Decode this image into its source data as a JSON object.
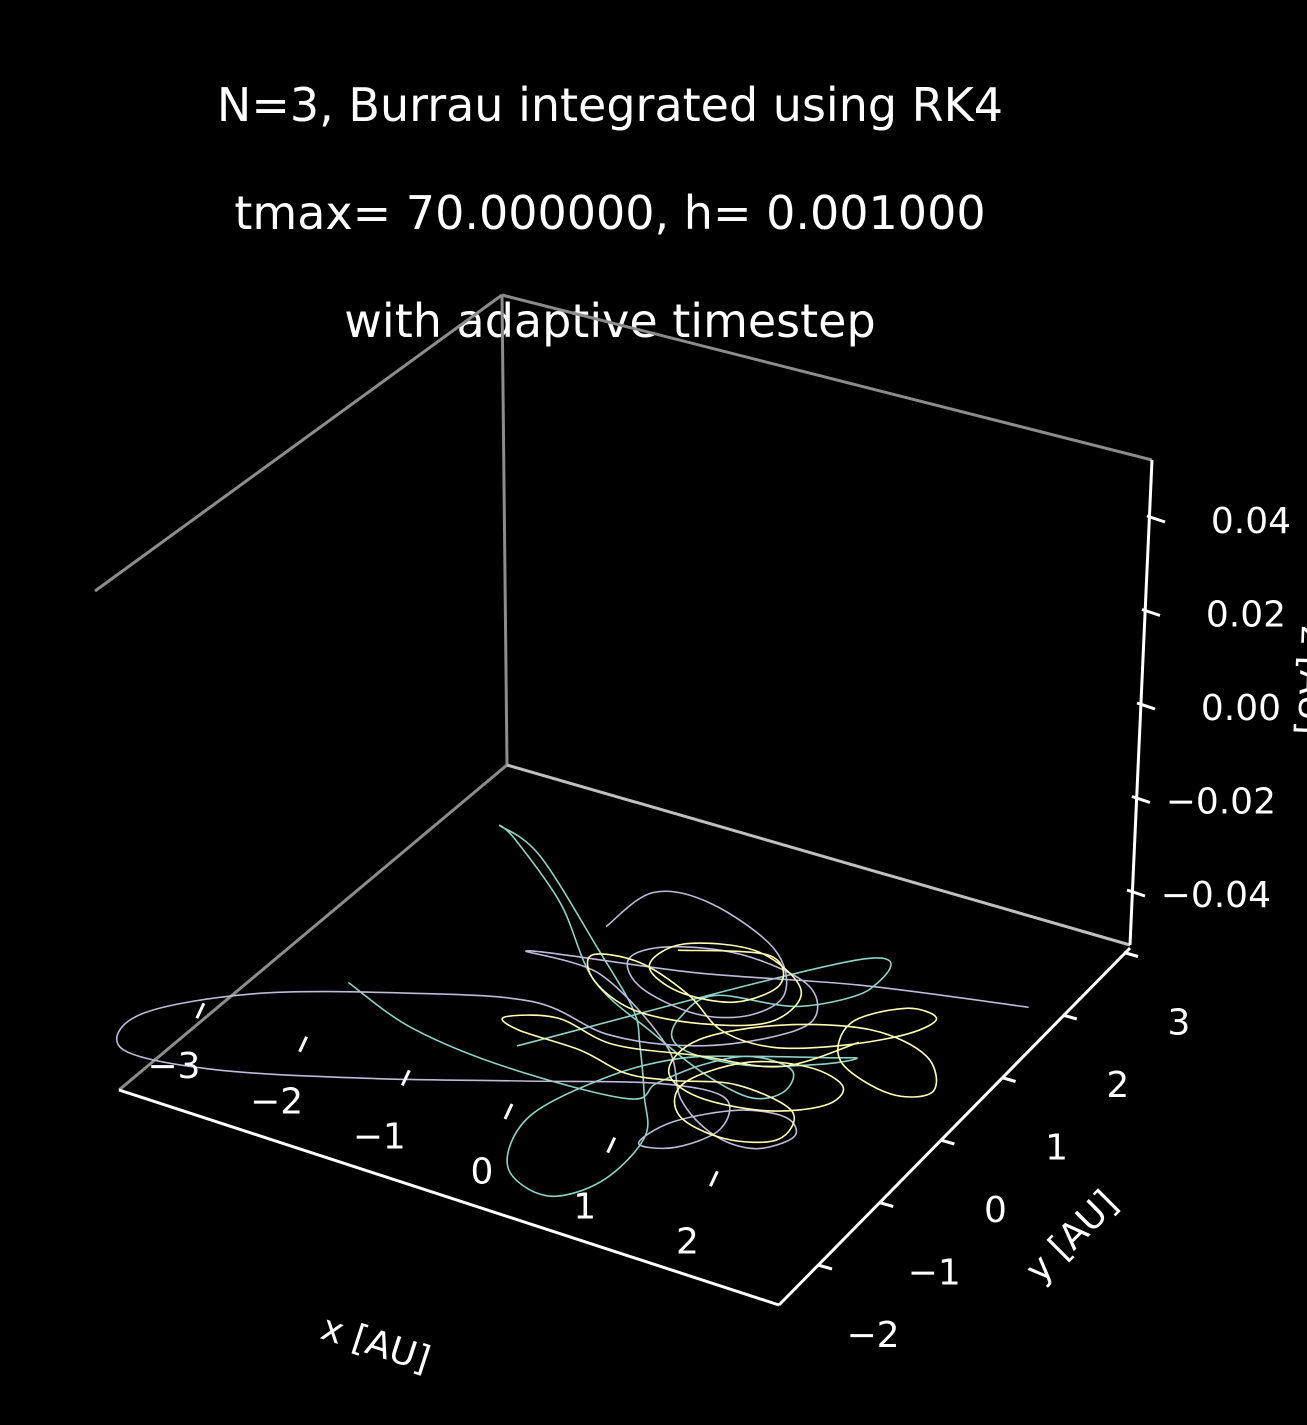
{
  "chart_data": {
    "type": "line",
    "projection": "3d",
    "title_lines": [
      "N=3, Burrau integrated using RK4",
      "tmax= 70.000000, h= 0.001000",
      "with adaptive timestep"
    ],
    "xlabel": "x [AU]",
    "ylabel": "y [AU]",
    "zlabel": "z [AU]",
    "x_ticks": [
      "−3",
      "−2",
      "−1",
      "0",
      "1",
      "2"
    ],
    "y_ticks": [
      "−2",
      "−1",
      "0",
      "1",
      "2",
      "3"
    ],
    "z_ticks": [
      "−0.04",
      "−0.02",
      "0.00",
      "0.02",
      "0.04"
    ],
    "grid": false,
    "background": "#000000",
    "pane_edge_color": "#8c8c8c",
    "axis_color": "#ffffff",
    "series": [
      {
        "color": "#8dd3c7",
        "points": [
          [
            -0.3,
            0.8,
            0
          ],
          [
            1.6,
            3.2,
            0
          ],
          [
            1.9,
            2.9,
            0
          ],
          [
            1.5,
            2.4,
            0
          ],
          [
            0.8,
            2.2,
            0
          ],
          [
            0.7,
            1.8,
            0
          ],
          [
            0.8,
            1.5,
            0
          ],
          [
            1.1,
            1.4,
            0
          ],
          [
            1.6,
            1.5,
            0
          ],
          [
            2.1,
            1.8,
            0
          ],
          [
            2.3,
            2.0,
            0
          ],
          [
            2.1,
            1.9,
            0
          ],
          [
            1.5,
            1.6,
            0
          ],
          [
            1.0,
            1.3,
            0
          ],
          [
            0.6,
            0.8,
            0
          ],
          [
            0.3,
            0.0,
            0
          ],
          [
            0.5,
            -0.7,
            0
          ],
          [
            1.0,
            -0.9,
            0
          ],
          [
            1.3,
            -0.5,
            0
          ],
          [
            1.3,
            0.2,
            0
          ],
          [
            1.0,
            0.7,
            0
          ],
          [
            0.6,
            1.3,
            0
          ],
          [
            0.3,
            1.7,
            0
          ],
          [
            -0.4,
            2.3,
            0
          ],
          [
            -1.5,
            3.2,
            0
          ],
          [
            -2.0,
            3.4,
            0
          ],
          [
            -1.8,
            3.3,
            0
          ],
          [
            -1.0,
            2.7,
            0
          ],
          [
            -0.2,
            1.9,
            0
          ],
          [
            0.6,
            1.5,
            0
          ],
          [
            1.3,
            1.2,
            0
          ],
          [
            1.8,
            1.1,
            0
          ],
          [
            2.0,
            1.3,
            0
          ],
          [
            1.9,
            1.6,
            0
          ],
          [
            1.5,
            1.6,
            0
          ],
          [
            1.2,
            1.3,
            0
          ],
          [
            1.0,
            0.9,
            0
          ],
          [
            0.9,
            0.6,
            0
          ],
          [
            -0.2,
            0.5,
            0
          ],
          [
            -1.2,
            0.6,
            0
          ],
          [
            -2.0,
            0.9,
            0
          ]
        ]
      },
      {
        "color": "#bebada",
        "points": [
          [
            -0.5,
            2.6,
            0
          ],
          [
            -0.4,
            3.2,
            0
          ],
          [
            0.1,
            3.3,
            0
          ],
          [
            0.9,
            3.0,
            0
          ],
          [
            1.3,
            2.5,
            0
          ],
          [
            1.2,
            2.1,
            0
          ],
          [
            0.8,
            1.9,
            0
          ],
          [
            0.2,
            2.0,
            0
          ],
          [
            -0.1,
            2.3,
            0
          ],
          [
            0.1,
            2.6,
            0
          ],
          [
            0.7,
            2.8,
            0
          ],
          [
            1.4,
            2.7,
            0
          ],
          [
            1.7,
            2.3,
            0
          ],
          [
            1.5,
            1.9,
            0
          ],
          [
            1.0,
            1.5,
            0
          ],
          [
            0.3,
            1.3,
            0
          ],
          [
            -0.5,
            1.4,
            0
          ],
          [
            -1.5,
            1.0,
            0
          ],
          [
            -2.6,
            0.4,
            0
          ],
          [
            -3.3,
            -0.3,
            0
          ],
          [
            -3.2,
            -0.8,
            0
          ],
          [
            -2.4,
            -0.7,
            0
          ],
          [
            -1.2,
            -0.2,
            0
          ],
          [
            0.0,
            0.4,
            0
          ],
          [
            1.0,
            0.9,
            0
          ],
          [
            1.6,
            1.0,
            0
          ],
          [
            1.8,
            0.6,
            0
          ],
          [
            1.6,
            0.2,
            0
          ],
          [
            1.3,
            0.1,
            0
          ],
          [
            1.4,
            0.5,
            0
          ],
          [
            1.8,
            0.9,
            0
          ],
          [
            2.2,
            1.0,
            0
          ],
          [
            2.4,
            0.8,
            0
          ],
          [
            2.2,
            0.5,
            0
          ],
          [
            1.8,
            0.5,
            0
          ],
          [
            1.3,
            0.8,
            0
          ],
          [
            0.8,
            1.4,
            0
          ],
          [
            -0.2,
            2.0,
            0
          ],
          [
            -0.9,
            2.0,
            0
          ],
          [
            0.5,
            2.4,
            0
          ],
          [
            1.8,
            2.9,
            0
          ],
          [
            3.2,
            3.3,
            0
          ]
        ]
      },
      {
        "color": "#ffffb3",
        "points": [
          [
            0.2,
            2.6,
            0
          ],
          [
            0.9,
            2.9,
            0
          ],
          [
            1.2,
            2.6,
            0
          ],
          [
            1.0,
            2.2,
            0
          ],
          [
            0.5,
            2.1,
            0
          ],
          [
            0.1,
            2.3,
            0
          ],
          [
            0.2,
            2.7,
            0
          ],
          [
            0.8,
            2.9,
            0
          ],
          [
            1.4,
            2.6,
            0
          ],
          [
            1.4,
            2.1,
            0
          ],
          [
            0.9,
            1.8,
            0
          ],
          [
            0.3,
            1.7,
            0
          ],
          [
            -0.2,
            1.9,
            0
          ],
          [
            -0.4,
            2.2,
            0
          ],
          [
            0.0,
            2.3,
            0
          ],
          [
            0.6,
            2.1,
            0
          ],
          [
            1.1,
            1.8,
            0
          ],
          [
            1.6,
            1.8,
            0
          ],
          [
            2.1,
            2.1,
            0
          ],
          [
            2.5,
            2.5,
            0
          ],
          [
            2.6,
            2.8,
            0
          ],
          [
            2.3,
            2.8,
            0
          ],
          [
            2.0,
            2.4,
            0
          ],
          [
            2.2,
            1.9,
            0
          ],
          [
            2.8,
            1.7,
            0
          ],
          [
            3.1,
            1.9,
            0
          ],
          [
            2.8,
            2.3,
            0
          ],
          [
            2.2,
            2.4,
            0
          ],
          [
            1.5,
            2.1,
            0
          ],
          [
            1.0,
            1.6,
            0
          ],
          [
            1.0,
            1.1,
            0
          ],
          [
            1.4,
            0.9,
            0
          ],
          [
            2.0,
            1.0,
            0
          ],
          [
            2.4,
            1.3,
            0
          ],
          [
            2.4,
            1.6,
            0
          ],
          [
            2.0,
            1.7,
            0
          ],
          [
            1.5,
            1.5,
            0
          ],
          [
            1.2,
            1.0,
            0
          ],
          [
            1.4,
            0.6,
            0
          ],
          [
            1.9,
            0.5,
            0
          ],
          [
            2.3,
            0.7,
            0
          ],
          [
            2.2,
            1.1,
            0
          ],
          [
            1.6,
            1.2,
            0
          ],
          [
            1.1,
            1.0,
            0
          ],
          [
            0.7,
            0.9,
            0
          ],
          [
            0.2,
            1.0,
            0
          ],
          [
            -0.4,
            1.0,
            0
          ],
          [
            -0.6,
            1.1,
            0
          ],
          [
            -0.2,
            1.3,
            0
          ],
          [
            0.4,
            1.2,
            0
          ],
          [
            1.1,
            1.4,
            0
          ],
          [
            1.8,
            1.6,
            0
          ],
          [
            2.2,
            2.2,
            0
          ]
        ]
      }
    ]
  }
}
